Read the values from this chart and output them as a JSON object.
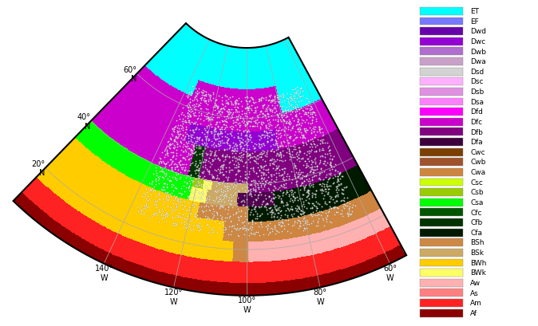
{
  "figsize": [
    6.74,
    4.1
  ],
  "dpi": 100,
  "legend_labels": [
    "ET",
    "EF",
    "Dwd",
    "Dwc",
    "Dwb",
    "Dwa",
    "Dsd",
    "Dsc",
    "Dsb",
    "Dsa",
    "Dfd",
    "Dfc",
    "Dfb",
    "Dfa",
    "Cwc",
    "Cwb",
    "Cwa",
    "Csc",
    "Csb",
    "Csa",
    "Cfc",
    "Cfb",
    "Cfa",
    "BSh",
    "BSk",
    "BWh",
    "BWk",
    "Aw",
    "As",
    "Am",
    "Af"
  ],
  "legend_colors": [
    "#00ffff",
    "#7777ff",
    "#6600aa",
    "#9400d3",
    "#b06ece",
    "#c8a0c8",
    "#d3d3d3",
    "#ffb0ff",
    "#e090e0",
    "#ff80ff",
    "#ff00ff",
    "#cc00cc",
    "#800080",
    "#3d003d",
    "#7b3f00",
    "#a0522d",
    "#cd853f",
    "#ccff00",
    "#99cc00",
    "#00ff00",
    "#005500",
    "#003300",
    "#001a00",
    "#cc8844",
    "#ccaa66",
    "#ffcc00",
    "#ffff66",
    "#ffb0b0",
    "#ff8080",
    "#ff2222",
    "#8b0000"
  ],
  "central_lon": -100,
  "central_lat": 45,
  "sp1": 33,
  "sp2": 45,
  "extent_lon": [
    -170,
    -55
  ],
  "extent_lat": [
    7,
    78
  ],
  "gridline_lons": [
    -140,
    -120,
    -100,
    -80,
    -60
  ],
  "gridline_lats": [
    20,
    40,
    60
  ],
  "gridline_color": "#aaaaaa",
  "border_linewidth": 1.5,
  "dot_seed": 42,
  "n_dots": 3000
}
